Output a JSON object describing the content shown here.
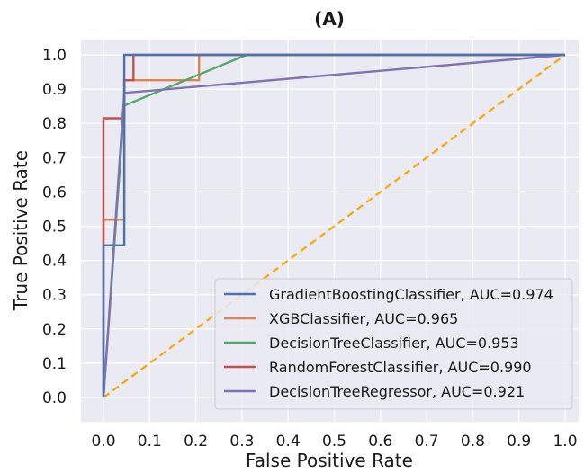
{
  "chart_data": {
    "type": "line",
    "title": "(A)",
    "xlabel": "False Positive Rate",
    "ylabel": "True Positive Rate",
    "xlim": [
      0,
      1
    ],
    "ylim": [
      0,
      1
    ],
    "xticks": [
      "0.0",
      "0.1",
      "0.2",
      "0.3",
      "0.4",
      "0.5",
      "0.6",
      "0.7",
      "0.8",
      "0.9",
      "1.0"
    ],
    "yticks": [
      "0.0",
      "0.1",
      "0.2",
      "0.3",
      "0.4",
      "0.5",
      "0.6",
      "0.7",
      "0.8",
      "0.9",
      "1.0"
    ],
    "grid": true,
    "background": "#eaeaf2",
    "legend_position": "lower right",
    "series": [
      {
        "name": "GradientBoostingClassifier, AUC=0.974",
        "color": "#4c72b0",
        "style": "solid",
        "x": [
          0,
          0,
          0.045,
          0.045,
          0.045,
          0.045,
          0.045,
          0.045,
          0.045,
          0.045,
          1
        ],
        "y": [
          0,
          0.444,
          0.444,
          0.519,
          0.519,
          0.815,
          0.815,
          0.926,
          0.926,
          1.0,
          1.0
        ]
      },
      {
        "name": "XGBClassifier, AUC=0.965",
        "color": "#dd8452",
        "style": "solid",
        "x": [
          0,
          0,
          0.045,
          0.045,
          0.045,
          0.045,
          0.207,
          0.207,
          1
        ],
        "y": [
          0,
          0.519,
          0.519,
          0.815,
          0.815,
          0.926,
          0.926,
          1.0,
          1.0
        ]
      },
      {
        "name": "DecisionTreeClassifier, AUC=0.953",
        "color": "#55a868",
        "style": "solid",
        "x": [
          0,
          0.045,
          0.31,
          1
        ],
        "y": [
          0,
          0.852,
          1.0,
          1.0
        ]
      },
      {
        "name": "RandomForestClassifier, AUC=0.990",
        "color": "#c44e52",
        "style": "solid",
        "x": [
          0,
          0,
          0.045,
          0.045,
          0.065,
          0.065,
          1
        ],
        "y": [
          0,
          0.815,
          0.815,
          0.926,
          0.926,
          1.0,
          1.0
        ]
      },
      {
        "name": "DecisionTreeRegressor, AUC=0.921",
        "color": "#8172b3",
        "style": "solid",
        "x": [
          0,
          0.045,
          1
        ],
        "y": [
          0,
          0.889,
          1.0
        ]
      },
      {
        "color": "#ffa500",
        "style": "dashed",
        "x": [
          0,
          1
        ],
        "y": [
          0,
          1
        ]
      }
    ]
  }
}
